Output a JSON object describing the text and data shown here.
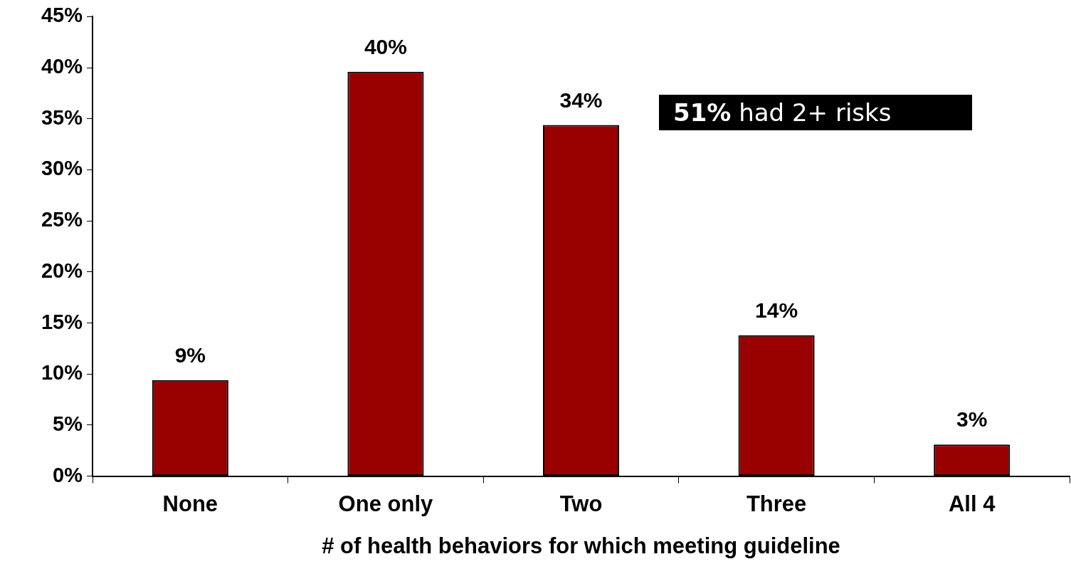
{
  "chart_data": {
    "type": "bar",
    "xlabel": "# of health behaviors for which meeting guideline",
    "categories": [
      "None",
      "One only",
      "Two",
      "Three",
      "All 4"
    ],
    "values": [
      9.4,
      39.6,
      34.4,
      13.8,
      3.1
    ],
    "value_labels": [
      "9%",
      "40%",
      "34%",
      "14%",
      "3%"
    ],
    "color": "#990000",
    "ylim": [
      0,
      45
    ],
    "yticks": [
      {
        "value": 0,
        "label": "0%"
      },
      {
        "value": 5,
        "label": "5%"
      },
      {
        "value": 10,
        "label": "10%"
      },
      {
        "value": 15,
        "label": "15%"
      },
      {
        "value": 20,
        "label": "20%"
      },
      {
        "value": 25,
        "label": "25%"
      },
      {
        "value": 30,
        "label": "30%"
      },
      {
        "value": 35,
        "label": "35%"
      },
      {
        "value": 40,
        "label": "40%"
      },
      {
        "value": 45,
        "label": "45%"
      }
    ],
    "annotations": [
      "51% had 2+ risks"
    ],
    "grid": false,
    "legend": false
  }
}
